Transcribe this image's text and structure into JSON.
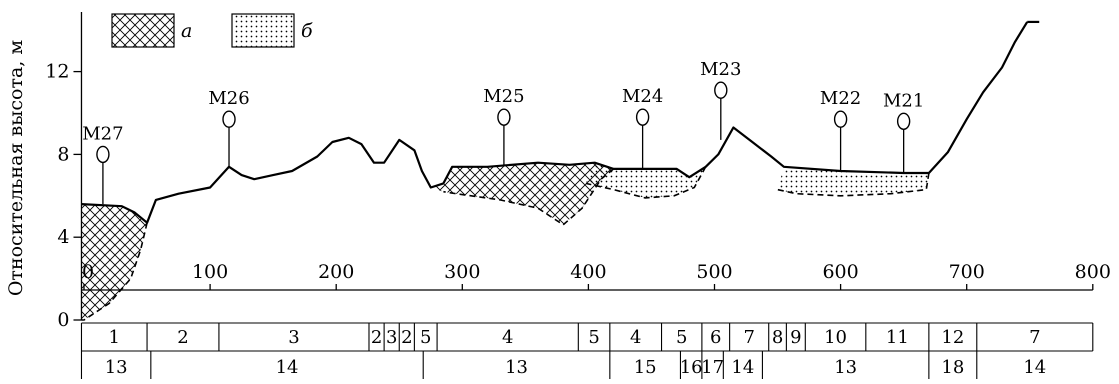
{
  "chart_data": {
    "type": "area",
    "title": "",
    "xlabel": "",
    "ylabel": "Относительная высота, м",
    "xlim": [
      0,
      800
    ],
    "ylim": [
      0,
      14.5
    ],
    "x_ticks": [
      0,
      100,
      200,
      300,
      400,
      500,
      600,
      700,
      800
    ],
    "y_ticks": [
      0,
      4,
      8,
      12
    ],
    "legend": {
      "position": "top-left",
      "entries": [
        {
          "id": "a",
          "label": "а",
          "pattern": "crosshatch"
        },
        {
          "id": "b",
          "label": "б",
          "pattern": "dots"
        }
      ]
    },
    "surface_profile": [
      [
        -2,
        5.6
      ],
      [
        30,
        5.5
      ],
      [
        40,
        5.2
      ],
      [
        50,
        4.7
      ],
      [
        57,
        5.8
      ],
      [
        75,
        6.1
      ],
      [
        100,
        6.4
      ],
      [
        115,
        7.4
      ],
      [
        125,
        7.0
      ],
      [
        135,
        6.8
      ],
      [
        150,
        7.0
      ],
      [
        165,
        7.2
      ],
      [
        185,
        7.9
      ],
      [
        197,
        8.6
      ],
      [
        210,
        8.8
      ],
      [
        220,
        8.5
      ],
      [
        230,
        7.6
      ],
      [
        238,
        7.6
      ],
      [
        250,
        8.7
      ],
      [
        262,
        8.2
      ],
      [
        268,
        7.2
      ],
      [
        275,
        6.4
      ],
      [
        285,
        6.6
      ],
      [
        292,
        7.4
      ],
      [
        320,
        7.4
      ],
      [
        360,
        7.6
      ],
      [
        385,
        7.5
      ],
      [
        405,
        7.6
      ],
      [
        420,
        7.3
      ],
      [
        450,
        7.3
      ],
      [
        470,
        7.3
      ],
      [
        480,
        6.9
      ],
      [
        493,
        7.4
      ],
      [
        503,
        8.0
      ],
      [
        515,
        9.3
      ],
      [
        530,
        8.6
      ],
      [
        545,
        7.9
      ],
      [
        555,
        7.4
      ],
      [
        600,
        7.2
      ],
      [
        650,
        7.1
      ],
      [
        670,
        7.1
      ],
      [
        685,
        8.1
      ],
      [
        700,
        9.7
      ],
      [
        713,
        11.0
      ],
      [
        728,
        12.2
      ],
      [
        738,
        13.4
      ],
      [
        748,
        14.4
      ]
    ],
    "markers": [
      {
        "label": "М27",
        "x": 15,
        "ground": 5.6,
        "top": 8.0
      },
      {
        "label": "М26",
        "x": 115,
        "ground": 7.4,
        "top": 9.7
      },
      {
        "label": "М25",
        "x": 333,
        "ground": 7.5,
        "top": 9.8
      },
      {
        "label": "М24",
        "x": 443,
        "ground": 7.3,
        "top": 9.8
      },
      {
        "label": "М23",
        "x": 505,
        "ground": 8.7,
        "top": 11.1
      },
      {
        "label": "М22",
        "x": 600,
        "ground": 7.2,
        "top": 9.7
      },
      {
        "label": "М21",
        "x": 650,
        "ground": 7.1,
        "top": 9.6
      }
    ],
    "deposits": [
      {
        "type": "a",
        "polygon": [
          [
            -2,
            5.6
          ],
          [
            30,
            5.5
          ],
          [
            40,
            5.2
          ],
          [
            50,
            4.7
          ],
          [
            45,
            3.4
          ],
          [
            37,
            2.0
          ],
          [
            20,
            0.8
          ],
          [
            0,
            0.0
          ],
          [
            -2,
            0.0
          ]
        ]
      },
      {
        "type": "a",
        "polygon": [
          [
            275,
            6.4
          ],
          [
            285,
            6.6
          ],
          [
            292,
            7.4
          ],
          [
            320,
            7.4
          ],
          [
            360,
            7.6
          ],
          [
            385,
            7.5
          ],
          [
            405,
            7.6
          ],
          [
            420,
            7.3
          ],
          [
            410,
            6.8
          ],
          [
            395,
            5.4
          ],
          [
            380,
            4.6
          ],
          [
            360,
            5.4
          ],
          [
            330,
            5.8
          ],
          [
            295,
            6.1
          ],
          [
            285,
            6.2
          ]
        ]
      },
      {
        "type": "b",
        "polygon": [
          [
            405,
            7.6
          ],
          [
            420,
            7.3
          ],
          [
            450,
            7.3
          ],
          [
            470,
            7.3
          ],
          [
            480,
            6.9
          ],
          [
            493,
            7.4
          ],
          [
            484,
            6.4
          ],
          [
            468,
            6.0
          ],
          [
            445,
            5.9
          ],
          [
            420,
            6.3
          ],
          [
            398,
            6.6
          ]
        ]
      },
      {
        "type": "b",
        "polygon": [
          [
            555,
            7.4
          ],
          [
            600,
            7.2
          ],
          [
            650,
            7.1
          ],
          [
            670,
            7.1
          ],
          [
            668,
            6.3
          ],
          [
            640,
            6.1
          ],
          [
            600,
            6.0
          ],
          [
            565,
            6.1
          ],
          [
            550,
            6.3
          ]
        ]
      }
    ],
    "row1": [
      {
        "label": "1",
        "x0": -2,
        "x1": 50
      },
      {
        "label": "2",
        "x0": 50,
        "x1": 107
      },
      {
        "label": "3",
        "x0": 107,
        "x1": 226
      },
      {
        "label": "2",
        "x0": 226,
        "x1": 238
      },
      {
        "label": "3",
        "x0": 238,
        "x1": 250
      },
      {
        "label": "2",
        "x0": 250,
        "x1": 262
      },
      {
        "label": "5",
        "x0": 262,
        "x1": 280
      },
      {
        "label": "4",
        "x0": 280,
        "x1": 392
      },
      {
        "label": "5",
        "x0": 392,
        "x1": 417
      },
      {
        "label": "4",
        "x0": 417,
        "x1": 458
      },
      {
        "label": "5",
        "x0": 458,
        "x1": 490
      },
      {
        "label": "6",
        "x0": 490,
        "x1": 512
      },
      {
        "label": "7",
        "x0": 512,
        "x1": 543
      },
      {
        "label": "8",
        "x0": 543,
        "x1": 557
      },
      {
        "label": "9",
        "x0": 557,
        "x1": 572
      },
      {
        "label": "10",
        "x0": 572,
        "x1": 620
      },
      {
        "label": "11",
        "x0": 620,
        "x1": 670
      },
      {
        "label": "12",
        "x0": 670,
        "x1": 708
      },
      {
        "label": "7",
        "x0": 708,
        "x1": 800
      }
    ],
    "row2": [
      {
        "label": "13",
        "x0": -2,
        "x1": 53
      },
      {
        "label": "14",
        "x0": 53,
        "x1": 269
      },
      {
        "label": "13",
        "x0": 269,
        "x1": 417
      },
      {
        "label": "15",
        "x0": 417,
        "x1": 473
      },
      {
        "label": "16",
        "x0": 473,
        "x1": 490
      },
      {
        "label": "17",
        "x0": 490,
        "x1": 507
      },
      {
        "label": "14",
        "x0": 507,
        "x1": 538
      },
      {
        "label": "13",
        "x0": 538,
        "x1": 670
      },
      {
        "label": "18",
        "x0": 670,
        "x1": 708
      },
      {
        "label": "14",
        "x0": 708,
        "x1": 800
      }
    ]
  }
}
